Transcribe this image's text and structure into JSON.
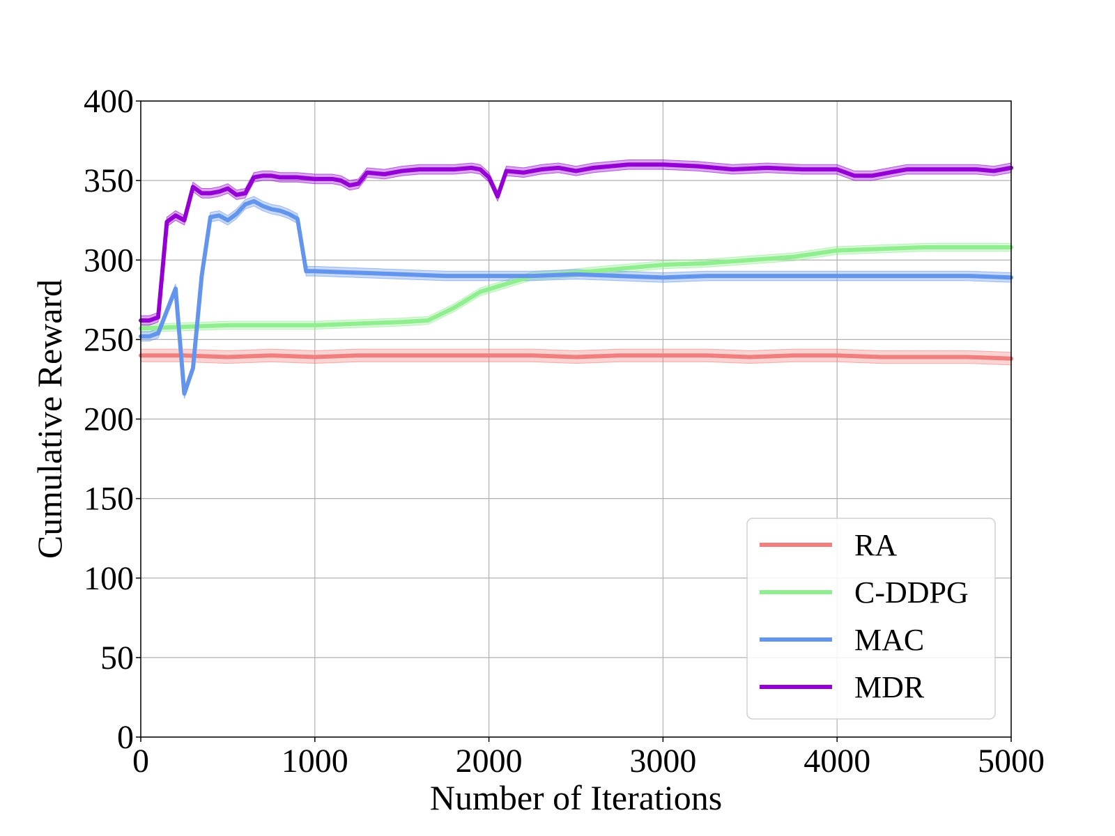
{
  "chart_data": {
    "type": "line",
    "title": "",
    "xlabel": "Number of Iterations",
    "ylabel": "Cumulative Reward",
    "xlim": [
      0,
      5000
    ],
    "ylim": [
      0,
      400
    ],
    "x_ticks": [
      0,
      1000,
      2000,
      3000,
      4000,
      5000
    ],
    "y_ticks": [
      0,
      50,
      100,
      150,
      200,
      250,
      300,
      350,
      400
    ],
    "grid": true,
    "legend_position": "bottom-right",
    "series": [
      {
        "name": "RA",
        "color": "#f08080",
        "x": [
          0,
          250,
          500,
          750,
          1000,
          1250,
          1500,
          1750,
          2000,
          2250,
          2500,
          2750,
          3000,
          3250,
          3500,
          3750,
          4000,
          4250,
          4500,
          4750,
          5000
        ],
        "y": [
          240,
          240,
          239,
          240,
          239,
          240,
          240,
          240,
          240,
          240,
          239,
          240,
          240,
          240,
          239,
          240,
          240,
          239,
          239,
          239,
          238
        ],
        "band": 4
      },
      {
        "name": "C-DDPG",
        "color": "#90ee90",
        "x": [
          0,
          250,
          500,
          750,
          1000,
          1250,
          1500,
          1650,
          1800,
          1950,
          2100,
          2250,
          2400,
          2600,
          2800,
          3000,
          3250,
          3500,
          3750,
          4000,
          4250,
          4500,
          4750,
          5000
        ],
        "y": [
          257,
          258,
          259,
          259,
          259,
          260,
          261,
          262,
          270,
          280,
          285,
          290,
          291,
          293,
          295,
          297,
          298,
          300,
          302,
          306,
          307,
          308,
          308,
          308
        ],
        "band": 2.5
      },
      {
        "name": "MAC",
        "color": "#6495ed",
        "x": [
          0,
          50,
          100,
          150,
          200,
          250,
          300,
          350,
          400,
          450,
          500,
          550,
          600,
          650,
          700,
          750,
          800,
          850,
          900,
          950,
          1000,
          1250,
          1500,
          1750,
          2000,
          2250,
          2500,
          2750,
          3000,
          3250,
          3500,
          3750,
          4000,
          4250,
          4500,
          4750,
          5000
        ],
        "y": [
          252,
          252,
          254,
          268,
          282,
          216,
          232,
          290,
          327,
          328,
          325,
          329,
          335,
          337,
          334,
          332,
          331,
          329,
          326,
          293,
          293,
          292,
          291,
          290,
          290,
          290,
          291,
          290,
          289,
          290,
          290,
          290,
          290,
          290,
          290,
          290,
          289
        ],
        "band": 3
      },
      {
        "name": "MDR",
        "color": "#9400d3",
        "x": [
          0,
          50,
          100,
          150,
          200,
          250,
          300,
          350,
          400,
          450,
          500,
          550,
          600,
          650,
          700,
          750,
          800,
          900,
          1000,
          1100,
          1150,
          1200,
          1250,
          1300,
          1400,
          1500,
          1600,
          1700,
          1800,
          1900,
          1950,
          2000,
          2050,
          2100,
          2200,
          2300,
          2400,
          2500,
          2600,
          2800,
          3000,
          3200,
          3400,
          3600,
          3800,
          4000,
          4100,
          4200,
          4300,
          4400,
          4600,
          4800,
          4900,
          5000
        ],
        "y": [
          262,
          262,
          264,
          324,
          328,
          325,
          346,
          342,
          342,
          343,
          345,
          341,
          342,
          352,
          353,
          353,
          352,
          352,
          351,
          351,
          350,
          347,
          348,
          355,
          354,
          356,
          357,
          357,
          357,
          358,
          357,
          352,
          340,
          356,
          355,
          357,
          358,
          356,
          358,
          360,
          360,
          359,
          357,
          358,
          357,
          357,
          353,
          353,
          355,
          357,
          357,
          357,
          356,
          358
        ],
        "band": 3
      }
    ]
  }
}
